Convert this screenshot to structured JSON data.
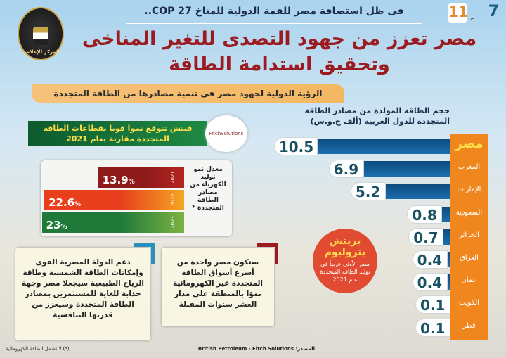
{
  "header": {
    "page_number": "7",
    "total_pages": "11",
    "of_label": "من",
    "subtitle": "فى ظل استضافة مصر للقمة الدولية للمناخ COP 27..",
    "title_line1": "مصر تعزز من جهود التصدى للتغير المناخى",
    "title_line2": "وتحقيق استدامة الطاقة",
    "banner": "الرؤية الدولية لجهود مصر فى تنمية مصادرها من الطاقة المتجددة",
    "logo_text": "المركز الإعلامى"
  },
  "colors": {
    "title": "#9b1b20",
    "bars": "#0c4a7e",
    "labels_column": "#f0871e",
    "accent_circle": "#e14b32",
    "green_header": "#0d5a2e"
  },
  "chart_data": [
    {
      "type": "bar",
      "orientation": "horizontal",
      "title": "حجم الطاقة المولدة من مصادر الطاقة المتجددة للدول العربية (ألف ج.و.س)",
      "categories": [
        "مصر",
        "المغرب",
        "الإمارات",
        "السعودية",
        "الجزائر",
        "العراق",
        "عمان",
        "الكويت",
        "قطر"
      ],
      "values": [
        10.5,
        6.9,
        5.2,
        0.8,
        0.7,
        0.4,
        0.4,
        0.1,
        0.1
      ],
      "value_labels": [
        "10.5",
        "6.9",
        "5.2",
        "0.8",
        "0.7",
        "0.4",
        "0.4",
        "0.1",
        "0.1"
      ]
    },
    {
      "type": "bar",
      "orientation": "horizontal",
      "title": "معدل نمو توليد الكهرباء من مصادر الطاقة المتجددة *",
      "categories": [
        "2021",
        "2022",
        "2023"
      ],
      "values": [
        13.9,
        22.6,
        23
      ],
      "value_labels": [
        "13.9",
        "22.6",
        "23"
      ],
      "unit": "%",
      "colors": [
        "#8e1a1a",
        "#e8401c",
        "#1f7a3a"
      ]
    }
  ],
  "bp_circle": {
    "title": "بريتش بتروليوم",
    "text1": "مصر الأولى عربياً فى",
    "text2": "توليد الطاقة المتجددة",
    "text3": "عام 2021"
  },
  "fitch": {
    "header_line1": "فيتش تتوقع نموا قويا بقطاعات الطاقة",
    "header_line2": "المتجددة مقارنة بعام 2021",
    "logo": "FitchSolutions"
  },
  "notes": [
    {
      "text": "دعم الدولة المصرية القوى وإمكانات الطاقة الشمسية وطاقة الرياح الطبيعية سيجعلا مصر وجهة جذابة للغاية للمستثمرين بمصادر الطاقة المتجددة وسيعزز من قدرتها التنافسية"
    },
    {
      "text": "ستكون مصر واحدة من أسرع أسواق الطاقة المتجددة غير الكهرومائية نموًا بالمنطقة على مدار العشر سنوات المقبلة"
    }
  ],
  "footer": {
    "source_label": "المصدر:",
    "source": "British Petroleum - Fitch Solutions",
    "footnote": "(*) لا تشمل الطاقة الكهرومائية"
  }
}
